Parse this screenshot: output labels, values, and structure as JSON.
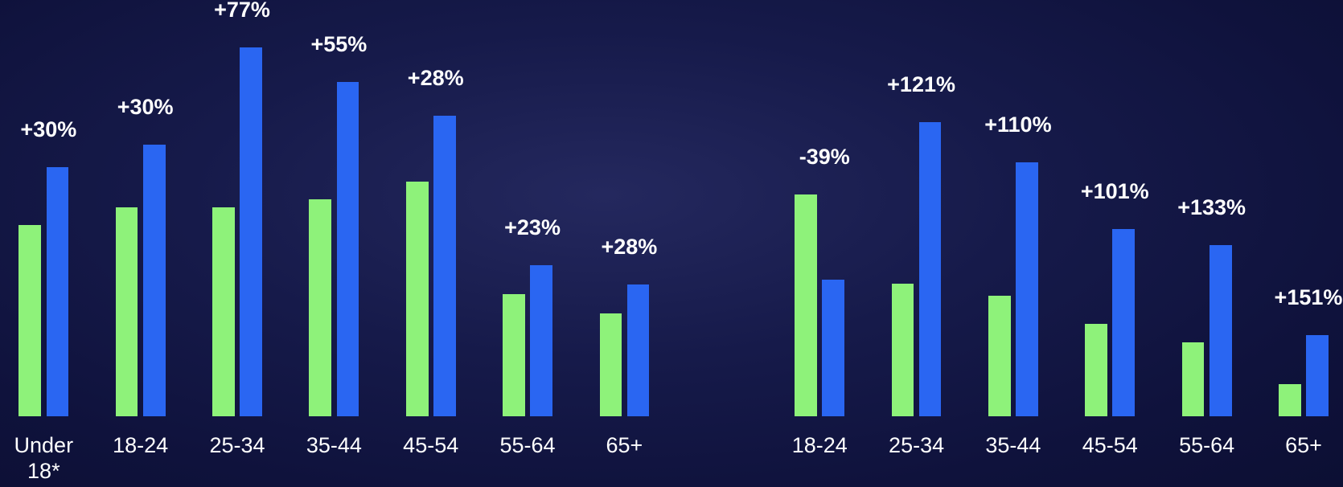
{
  "chart_data": [
    {
      "type": "bar",
      "categories": [
        "Under 18*",
        "18-24",
        "25-34",
        "35-44",
        "45-54",
        "55-64",
        "65+"
      ],
      "series": [
        {
          "color": "#8ef27a",
          "values": [
            223,
            244,
            244,
            253,
            274,
            142,
            120
          ]
        },
        {
          "color": "#2a66f2",
          "values": [
            291,
            317,
            431,
            390,
            351,
            176,
            154
          ]
        }
      ],
      "labels": [
        "+30%",
        "+30%",
        "+77%",
        "+55%",
        "+28%",
        "+23%",
        "+28%"
      ],
      "ylim": [
        0,
        486
      ]
    },
    {
      "type": "bar",
      "categories": [
        "18-24",
        "25-34",
        "35-44",
        "45-54",
        "55-64",
        "65+"
      ],
      "series": [
        {
          "color": "#8ef27a",
          "values": [
            259,
            155,
            140,
            108,
            86,
            37
          ]
        },
        {
          "color": "#2a66f2",
          "values": [
            159,
            343,
            296,
            218,
            200,
            94
          ]
        }
      ],
      "labels": [
        "-39%",
        "+121%",
        "+110%",
        "+101%",
        "+133%",
        "+151%"
      ],
      "ylim": [
        0,
        486
      ]
    }
  ]
}
